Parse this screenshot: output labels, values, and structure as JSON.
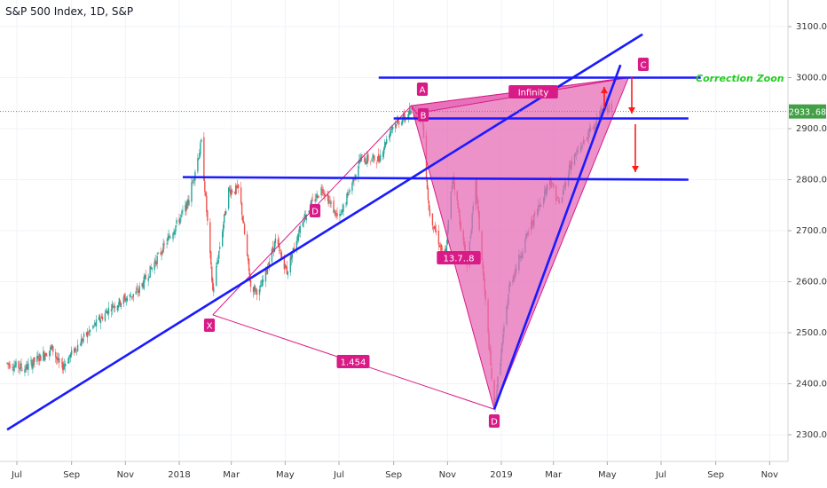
{
  "title": "S&P 500 Index, 1D, S&P",
  "chart_data": {
    "type": "candlestick",
    "ylim": [
      2250,
      3130
    ],
    "y_ticks": [
      2300,
      2400,
      2500,
      2600,
      2700,
      2800,
      2900,
      3000,
      3100
    ],
    "x_ticks": [
      {
        "label": "Jul",
        "date": "2017-07-01"
      },
      {
        "label": "Sep",
        "date": "2017-09-01"
      },
      {
        "label": "Nov",
        "date": "2017-11-01"
      },
      {
        "label": "2018",
        "date": "2018-01-01"
      },
      {
        "label": "Mar",
        "date": "2018-03-01"
      },
      {
        "label": "May",
        "date": "2018-05-01"
      },
      {
        "label": "Jul",
        "date": "2018-07-01"
      },
      {
        "label": "Sep",
        "date": "2018-09-01"
      },
      {
        "label": "Nov",
        "date": "2018-11-01"
      },
      {
        "label": "2019",
        "date": "2019-01-01"
      },
      {
        "label": "Mar",
        "date": "2019-03-01"
      },
      {
        "label": "May",
        "date": "2019-05-01"
      },
      {
        "label": "Jul",
        "date": "2019-07-01"
      },
      {
        "label": "Sep",
        "date": "2019-09-01"
      },
      {
        "label": "Nov",
        "date": "2019-11-01"
      }
    ],
    "current_price": "2933.68",
    "price_keypoints": [
      [
        "2017-06-20",
        2440
      ],
      [
        "2017-07-10",
        2430
      ],
      [
        "2017-08-10",
        2470
      ],
      [
        "2017-08-20",
        2430
      ],
      [
        "2017-09-10",
        2480
      ],
      [
        "2017-10-15",
        2550
      ],
      [
        "2017-11-15",
        2580
      ],
      [
        "2017-12-15",
        2670
      ],
      [
        "2018-01-10",
        2750
      ],
      [
        "2018-01-26",
        2872
      ],
      [
        "2018-02-08",
        2582
      ],
      [
        "2018-02-26",
        2780
      ],
      [
        "2018-03-10",
        2780
      ],
      [
        "2018-03-23",
        2590
      ],
      [
        "2018-04-02",
        2580
      ],
      [
        "2018-04-20",
        2680
      ],
      [
        "2018-05-03",
        2620
      ],
      [
        "2018-05-20",
        2720
      ],
      [
        "2018-06-12",
        2785
      ],
      [
        "2018-07-01",
        2720
      ],
      [
        "2018-07-25",
        2840
      ],
      [
        "2018-08-15",
        2840
      ],
      [
        "2018-08-30",
        2905
      ],
      [
        "2018-09-20",
        2930
      ],
      [
        "2018-10-03",
        2930
      ],
      [
        "2018-10-11",
        2740
      ],
      [
        "2018-10-29",
        2640
      ],
      [
        "2018-11-07",
        2810
      ],
      [
        "2018-11-23",
        2630
      ],
      [
        "2018-12-03",
        2790
      ],
      [
        "2018-12-24",
        2350
      ],
      [
        "2019-01-10",
        2590
      ],
      [
        "2019-02-01",
        2700
      ],
      [
        "2019-02-25",
        2800
      ],
      [
        "2019-03-08",
        2750
      ],
      [
        "2019-03-20",
        2830
      ],
      [
        "2019-04-10",
        2890
      ],
      [
        "2019-04-30",
        2945
      ],
      [
        "2019-05-06",
        2933
      ]
    ],
    "levels": [
      {
        "name": "top",
        "value": 3000
      },
      {
        "name": "middle",
        "value": 2920
      },
      {
        "name": "lower",
        "value": 2800
      }
    ],
    "pattern_points": [
      {
        "label": "X",
        "date": "2018-02-08",
        "price": 2535
      },
      {
        "label": "A",
        "date": "2018-09-21",
        "price": 2945
      },
      {
        "label": "B",
        "date": "2018-09-27",
        "price": 2930
      },
      {
        "label": "D",
        "date": "2018-12-24",
        "price": 2350
      },
      {
        "label": "C",
        "date": "2019-05-25",
        "price": 3000
      }
    ],
    "ratios": [
      "1.454",
      "13.7..8",
      "Infinity"
    ],
    "point_labels": [
      "X",
      "A",
      "B",
      "D",
      "C",
      "D"
    ],
    "annotation": "Correction Zoon"
  },
  "colors": {
    "up": "#26a69a",
    "down": "#ef5350",
    "line": "#1a1aff",
    "pattern": "#d81b87",
    "pattern_fill": "#e667b4",
    "arrow": "#ff1a1a",
    "zone_text": "#22cc22",
    "price_tag": "#43a047"
  }
}
